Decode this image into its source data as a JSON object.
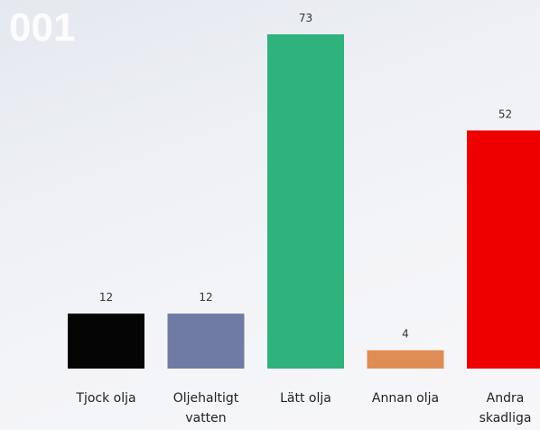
{
  "chart_data": {
    "type": "bar",
    "title": "001",
    "categories": [
      "Tjock olja",
      "Oljehaltigt vatten",
      "Lätt olja",
      "Annan olja",
      "Andra skadliga"
    ],
    "values": [
      12,
      12,
      73,
      4,
      52
    ],
    "colors": [
      "#050505",
      "#6f7ba3",
      "#30b27c",
      "#e08c55",
      "#ee0000"
    ]
  }
}
